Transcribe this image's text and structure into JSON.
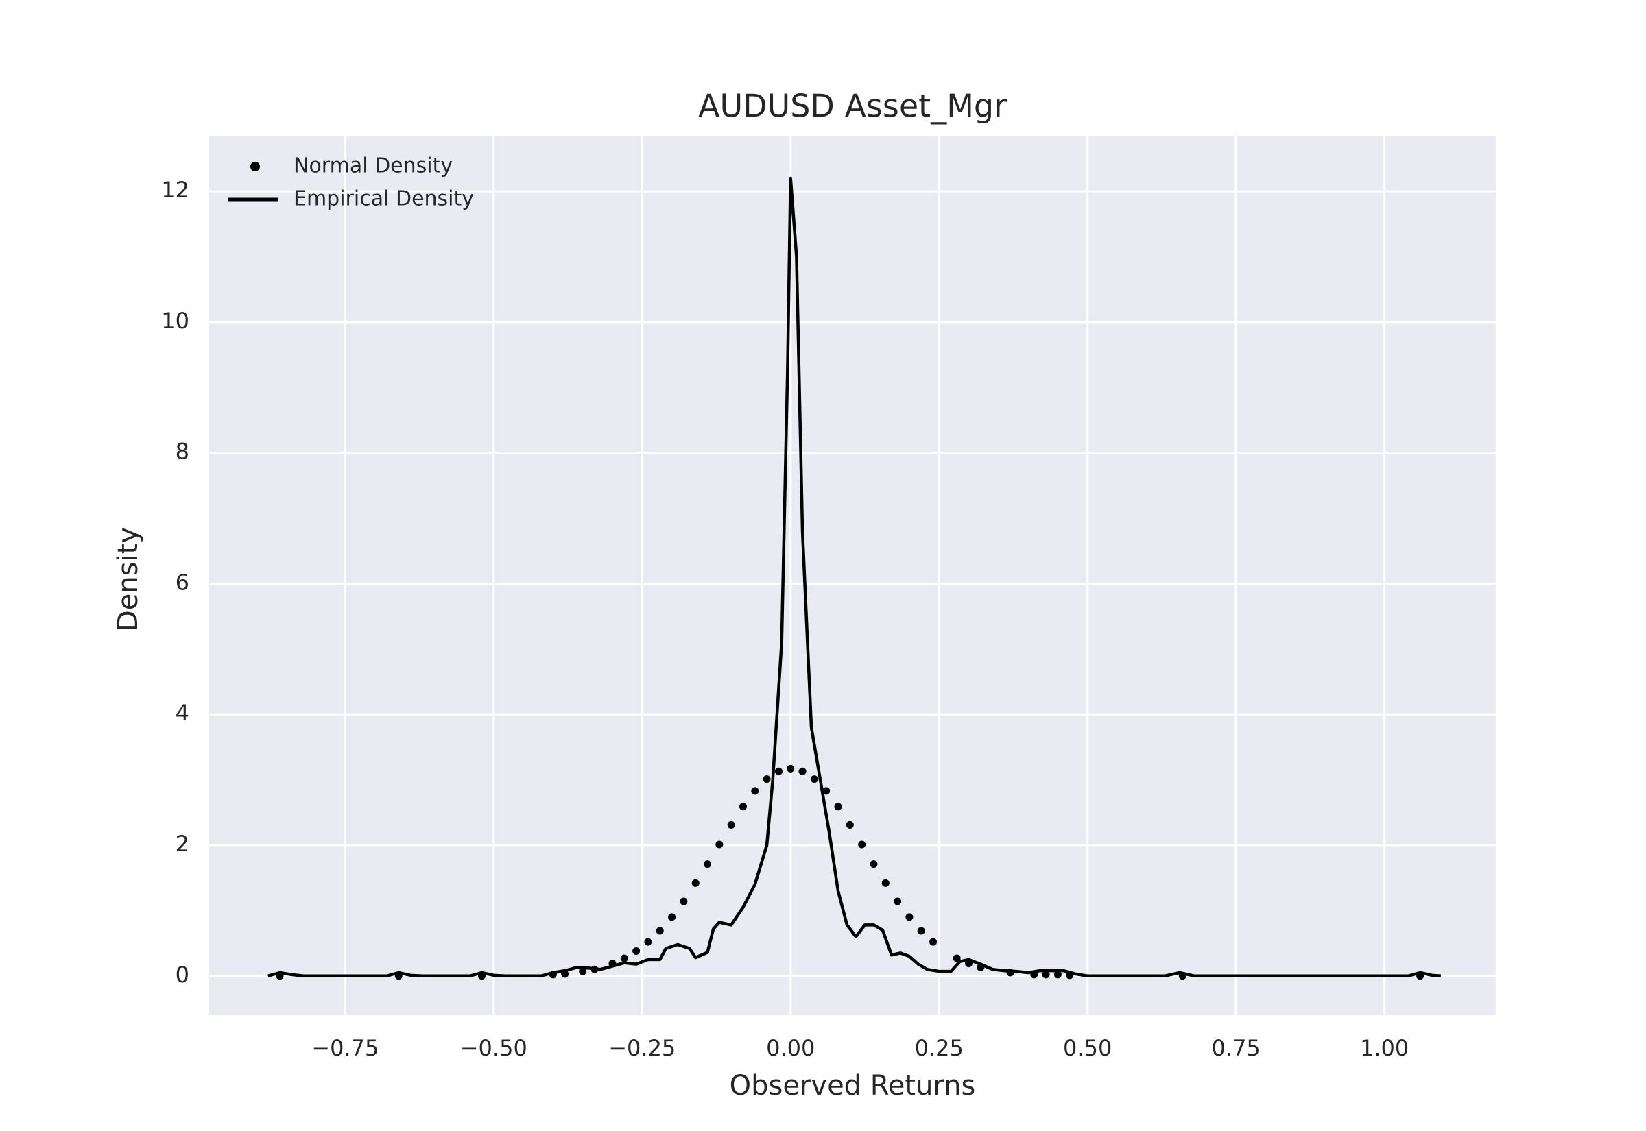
{
  "chart_data": {
    "type": "line",
    "title": "AUDUSD Asset_Mgr",
    "x_label": "Observed Returns",
    "y_label": "Density",
    "xlim": [
      -0.979,
      1.1875
    ],
    "ylim": [
      -0.6,
      12.84
    ],
    "xticks": [
      {
        "value": -0.75,
        "label": "−0.75"
      },
      {
        "value": -0.5,
        "label": "−0.50"
      },
      {
        "value": -0.25,
        "label": "−0.25"
      },
      {
        "value": 0,
        "label": "0.00"
      },
      {
        "value": 0.25,
        "label": "0.25"
      },
      {
        "value": 0.5,
        "label": "0.50"
      },
      {
        "value": 0.75,
        "label": "0.75"
      },
      {
        "value": 1,
        "label": "1.00"
      }
    ],
    "yticks": [
      0,
      2,
      4,
      6,
      8,
      10,
      12
    ],
    "grid": true,
    "legend": "upper left",
    "series": [
      {
        "name": "Normal Density",
        "type": "scatter",
        "color": "#000000",
        "x": [
          -0.86,
          -0.66,
          -0.52,
          -0.4,
          -0.38,
          -0.35,
          -0.33,
          -0.3,
          -0.28,
          -0.26,
          -0.24,
          -0.22,
          -0.2,
          -0.18,
          -0.16,
          -0.14,
          -0.12,
          -0.1,
          -0.08,
          -0.06,
          -0.04,
          -0.02,
          0,
          0.02,
          0.04,
          0.06,
          0.08,
          0.1,
          0.12,
          0.14,
          0.16,
          0.18,
          0.2,
          0.22,
          0.24,
          0.28,
          0.3,
          0.32,
          0.37,
          0.41,
          0.43,
          0.45,
          0.47,
          0.66,
          1.06
        ],
        "values": [
          0,
          0,
          0,
          0.02,
          0.03,
          0.07,
          0.1,
          0.19,
          0.27,
          0.38,
          0.52,
          0.69,
          0.9,
          1.14,
          1.42,
          1.71,
          2.01,
          2.31,
          2.59,
          2.83,
          3.01,
          3.13,
          3.17,
          3.13,
          3.01,
          2.83,
          2.59,
          2.31,
          2.01,
          1.71,
          1.42,
          1.14,
          0.9,
          0.69,
          0.52,
          0.27,
          0.19,
          0.13,
          0.05,
          0.02,
          0.02,
          0.02,
          0.01,
          0,
          0
        ]
      },
      {
        "name": "Empirical Density",
        "type": "line",
        "color": "#000000",
        "x": [
          -0.88,
          -0.86,
          -0.84,
          -0.82,
          -0.68,
          -0.66,
          -0.64,
          -0.62,
          -0.54,
          -0.52,
          -0.5,
          -0.48,
          -0.42,
          -0.4,
          -0.38,
          -0.36,
          -0.34,
          -0.32,
          -0.3,
          -0.28,
          -0.26,
          -0.24,
          -0.22,
          -0.21,
          -0.19,
          -0.17,
          -0.16,
          -0.14,
          -0.13,
          -0.12,
          -0.1,
          -0.08,
          -0.06,
          -0.04,
          -0.03,
          -0.015,
          -0.005,
          0,
          0.01,
          0.02,
          0.035,
          0.05,
          0.065,
          0.08,
          0.095,
          0.11,
          0.125,
          0.14,
          0.155,
          0.17,
          0.185,
          0.2,
          0.215,
          0.23,
          0.25,
          0.27,
          0.285,
          0.3,
          0.32,
          0.34,
          0.36,
          0.38,
          0.4,
          0.42,
          0.46,
          0.48,
          0.5,
          0.63,
          0.655,
          0.68,
          1.04,
          1.06,
          1.08,
          1.095
        ],
        "values": [
          0,
          0.05,
          0.02,
          0,
          0,
          0.05,
          0.01,
          0,
          0,
          0.05,
          0.01,
          0,
          0,
          0.05,
          0.08,
          0.13,
          0.12,
          0.1,
          0.15,
          0.2,
          0.18,
          0.25,
          0.25,
          0.42,
          0.48,
          0.42,
          0.28,
          0.36,
          0.72,
          0.82,
          0.78,
          1.05,
          1.4,
          2.0,
          3.0,
          5.1,
          9.3,
          12.2,
          11.0,
          6.8,
          3.8,
          3.0,
          2.2,
          1.3,
          0.78,
          0.6,
          0.78,
          0.78,
          0.7,
          0.32,
          0.35,
          0.3,
          0.18,
          0.1,
          0.07,
          0.07,
          0.22,
          0.25,
          0.18,
          0.1,
          0.08,
          0.07,
          0.05,
          0.08,
          0.08,
          0.03,
          0,
          0,
          0.05,
          0,
          0,
          0.05,
          0.01,
          0
        ]
      }
    ]
  }
}
